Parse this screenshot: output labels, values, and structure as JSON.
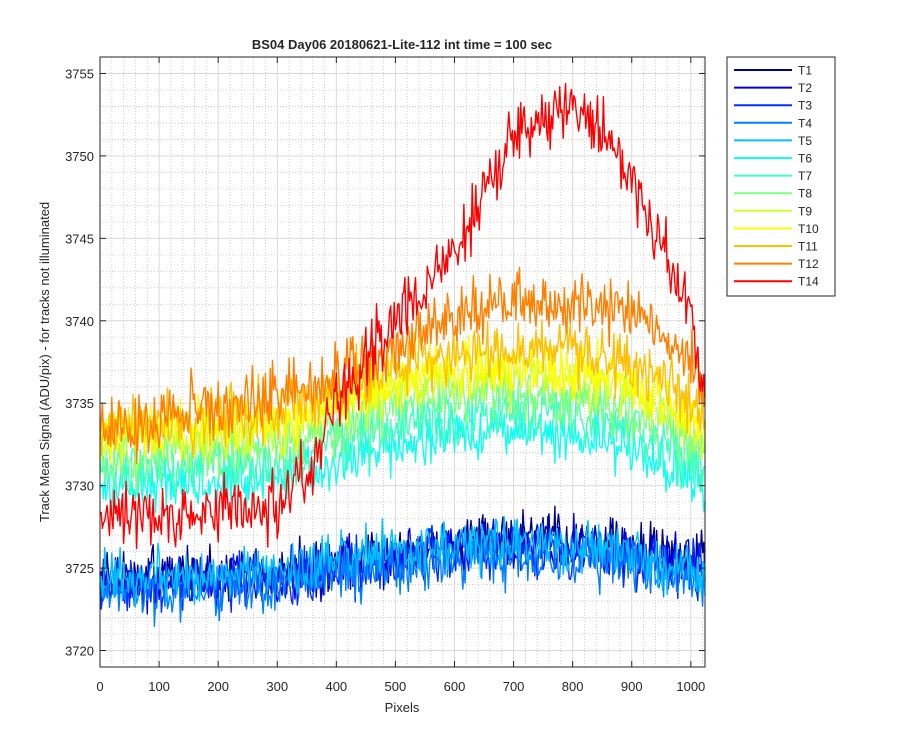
{
  "chart_data": {
    "type": "line",
    "title": "BS04 Day06 20180621-Lite-112 int time = 100 sec",
    "xlabel": "Pixels",
    "ylabel": "Track Mean Signal (ADU/pix) - for tracks not illuminated",
    "xlim": [
      0,
      1024
    ],
    "ylim": [
      3719,
      3756
    ],
    "x_ticks": [
      0,
      100,
      200,
      300,
      400,
      500,
      600,
      700,
      800,
      900,
      1000
    ],
    "x_tick_labels": [
      "0",
      "100",
      "200",
      "300",
      "400",
      "500",
      "600",
      "700",
      "800",
      "900",
      "1000"
    ],
    "y_ticks": [
      3720,
      3725,
      3730,
      3735,
      3740,
      3745,
      3750,
      3755
    ],
    "y_tick_labels": [
      "3720",
      "3725",
      "3730",
      "3735",
      "3740",
      "3745",
      "3750",
      "3755"
    ],
    "grid": "major and minor (dotted)",
    "legend_position": "outside-right",
    "x_sample_points": [
      0,
      50,
      100,
      150,
      200,
      250,
      300,
      350,
      400,
      450,
      500,
      550,
      600,
      650,
      700,
      750,
      800,
      850,
      900,
      950,
      1000,
      1024
    ],
    "series": [
      {
        "name": "T1",
        "color": "#00008f",
        "noise": 1.3,
        "values": [
          3724.5,
          3724.5,
          3724.6,
          3724.7,
          3724.8,
          3724.8,
          3724.9,
          3725.0,
          3725.3,
          3725.6,
          3726.0,
          3726.4,
          3726.6,
          3726.8,
          3726.9,
          3726.8,
          3726.7,
          3726.6,
          3726.3,
          3726.0,
          3725.7,
          3725.5
        ]
      },
      {
        "name": "T2",
        "color": "#0000df",
        "noise": 1.3,
        "values": [
          3724.0,
          3724.0,
          3724.1,
          3724.2,
          3724.3,
          3724.4,
          3724.5,
          3724.7,
          3725.0,
          3725.3,
          3725.7,
          3726.0,
          3726.2,
          3726.4,
          3726.5,
          3726.4,
          3726.3,
          3726.2,
          3725.9,
          3725.6,
          3725.3,
          3725.1
        ]
      },
      {
        "name": "T3",
        "color": "#0030ff",
        "noise": 1.3,
        "values": [
          3723.8,
          3723.8,
          3723.9,
          3724.0,
          3724.1,
          3724.2,
          3724.3,
          3724.5,
          3724.8,
          3725.1,
          3725.4,
          3725.7,
          3725.9,
          3726.0,
          3726.1,
          3726.0,
          3725.9,
          3725.8,
          3725.6,
          3725.3,
          3725.0,
          3724.8
        ]
      },
      {
        "name": "T4",
        "color": "#0080ff",
        "noise": 1.3,
        "values": [
          3723.5,
          3723.5,
          3723.6,
          3723.7,
          3723.8,
          3723.9,
          3724.0,
          3724.2,
          3724.5,
          3724.8,
          3725.1,
          3725.3,
          3725.5,
          3725.6,
          3725.7,
          3725.6,
          3725.5,
          3725.4,
          3725.2,
          3724.9,
          3724.6,
          3724.4
        ]
      },
      {
        "name": "T5",
        "color": "#00c0ff",
        "noise": 1.3,
        "values": [
          3724.2,
          3724.3,
          3724.4,
          3724.5,
          3724.6,
          3724.7,
          3724.8,
          3725.1,
          3725.4,
          3725.8,
          3726.1,
          3726.3,
          3726.4,
          3726.5,
          3726.4,
          3726.3,
          3726.2,
          3726.0,
          3725.7,
          3725.3,
          3724.9,
          3724.7
        ]
      },
      {
        "name": "T6",
        "color": "#10ffef",
        "noise": 1.4,
        "values": [
          3729.6,
          3729.8,
          3730.0,
          3730.1,
          3730.2,
          3730.3,
          3730.4,
          3730.8,
          3731.3,
          3731.9,
          3732.4,
          3732.8,
          3733.1,
          3733.2,
          3733.2,
          3733.1,
          3733.0,
          3732.7,
          3732.1,
          3731.4,
          3730.5,
          3729.8
        ]
      },
      {
        "name": "T7",
        "color": "#40ffbf",
        "noise": 1.4,
        "values": [
          3730.5,
          3730.7,
          3730.9,
          3731.0,
          3731.1,
          3731.2,
          3731.3,
          3731.8,
          3732.4,
          3733.0,
          3733.6,
          3734.0,
          3734.3,
          3734.5,
          3734.5,
          3734.4,
          3734.3,
          3734.0,
          3733.4,
          3732.6,
          3731.7,
          3731.0
        ]
      },
      {
        "name": "T8",
        "color": "#7fff80",
        "noise": 1.4,
        "values": [
          3731.5,
          3731.8,
          3732.0,
          3732.1,
          3732.2,
          3732.3,
          3732.4,
          3732.9,
          3733.5,
          3734.1,
          3734.7,
          3735.1,
          3735.4,
          3735.6,
          3735.6,
          3735.5,
          3735.4,
          3735.1,
          3734.5,
          3733.7,
          3732.7,
          3732.0
        ]
      },
      {
        "name": "T9",
        "color": "#d0ff30",
        "noise": 1.4,
        "values": [
          3732.5,
          3732.8,
          3733.0,
          3733.1,
          3733.2,
          3733.3,
          3733.4,
          3733.9,
          3734.5,
          3735.2,
          3735.8,
          3736.2,
          3736.5,
          3736.7,
          3736.7,
          3736.6,
          3736.5,
          3736.2,
          3735.6,
          3734.8,
          3733.8,
          3733.0
        ]
      },
      {
        "name": "T10",
        "color": "#ffff00",
        "noise": 1.4,
        "values": [
          3733.0,
          3733.3,
          3733.5,
          3733.6,
          3733.7,
          3733.8,
          3733.9,
          3734.4,
          3735.0,
          3735.7,
          3736.3,
          3736.8,
          3737.1,
          3737.3,
          3737.3,
          3737.2,
          3737.1,
          3736.8,
          3736.2,
          3735.3,
          3734.3,
          3733.5
        ]
      },
      {
        "name": "T11",
        "color": "#ffc000",
        "noise": 1.5,
        "values": [
          3733.3,
          3733.6,
          3733.8,
          3734.0,
          3734.2,
          3734.4,
          3734.6,
          3735.1,
          3735.7,
          3736.4,
          3737.1,
          3737.6,
          3737.9,
          3738.1,
          3738.2,
          3738.1,
          3738.0,
          3737.7,
          3737.0,
          3736.0,
          3734.9,
          3734.0
        ]
      },
      {
        "name": "T12",
        "color": "#ff8000",
        "noise": 1.6,
        "values": [
          3733.5,
          3733.8,
          3734.1,
          3734.5,
          3734.9,
          3735.3,
          3735.7,
          3736.2,
          3736.8,
          3737.7,
          3738.6,
          3739.5,
          3740.3,
          3740.9,
          3741.3,
          3741.4,
          3741.3,
          3741.2,
          3740.4,
          3739.0,
          3737.3,
          3735.5
        ]
      },
      {
        "name": "T14",
        "color": "#ff0000",
        "noise": 1.6,
        "values": [
          3728.0,
          3728.2,
          3728.3,
          3728.4,
          3728.5,
          3728.5,
          3728.6,
          3731.0,
          3734.5,
          3737.8,
          3740.0,
          3742.2,
          3744.5,
          3747.8,
          3750.8,
          3752.2,
          3752.8,
          3751.5,
          3748.5,
          3744.5,
          3740.0,
          3735.5
        ]
      }
    ]
  }
}
